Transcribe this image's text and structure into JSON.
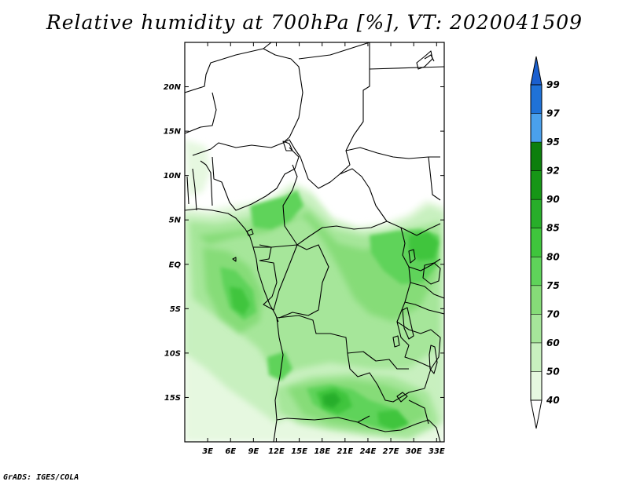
{
  "title": "Relative humidity at 700hPa [%], VT: 2020041509",
  "credit": "GrADS: IGES/COLA",
  "map": {
    "lon_range": [
      0,
      34
    ],
    "lat_range": [
      -20,
      25
    ],
    "lon_ticks": [
      {
        "value": 3,
        "label": "3E"
      },
      {
        "value": 6,
        "label": "6E"
      },
      {
        "value": 9,
        "label": "9E"
      },
      {
        "value": 12,
        "label": "12E"
      },
      {
        "value": 15,
        "label": "15E"
      },
      {
        "value": 18,
        "label": "18E"
      },
      {
        "value": 21,
        "label": "21E"
      },
      {
        "value": 24,
        "label": "24E"
      },
      {
        "value": 27,
        "label": "27E"
      },
      {
        "value": 30,
        "label": "30E"
      },
      {
        "value": 33,
        "label": "33E"
      }
    ],
    "lat_ticks": [
      {
        "value": 20,
        "label": "20N"
      },
      {
        "value": 15,
        "label": "15N"
      },
      {
        "value": 10,
        "label": "10N"
      },
      {
        "value": 5,
        "label": "5N"
      },
      {
        "value": 0,
        "label": "EQ"
      },
      {
        "value": -5,
        "label": "5S"
      },
      {
        "value": -10,
        "label": "10S"
      },
      {
        "value": -15,
        "label": "15S"
      }
    ]
  },
  "colorbar": {
    "levels": [
      {
        "label": "40",
        "color": "#ffffff"
      },
      {
        "label": "50",
        "color": "#e6f8e0"
      },
      {
        "label": "60",
        "color": "#c8f0bf"
      },
      {
        "label": "70",
        "color": "#a6e69a"
      },
      {
        "label": "75",
        "color": "#86dc78"
      },
      {
        "label": "80",
        "color": "#5fd35a"
      },
      {
        "label": "85",
        "color": "#3fc53c"
      },
      {
        "label": "90",
        "color": "#28ae2a"
      },
      {
        "label": "92",
        "color": "#169616"
      },
      {
        "label": "95",
        "color": "#0c7f0c"
      },
      {
        "label": "97",
        "color": "#4aa0ec"
      },
      {
        "label": "99",
        "color": "#1f72d8"
      }
    ],
    "top_arrow_color": "#1a5fcf",
    "bottom_arrow_color": "#ffffff"
  }
}
